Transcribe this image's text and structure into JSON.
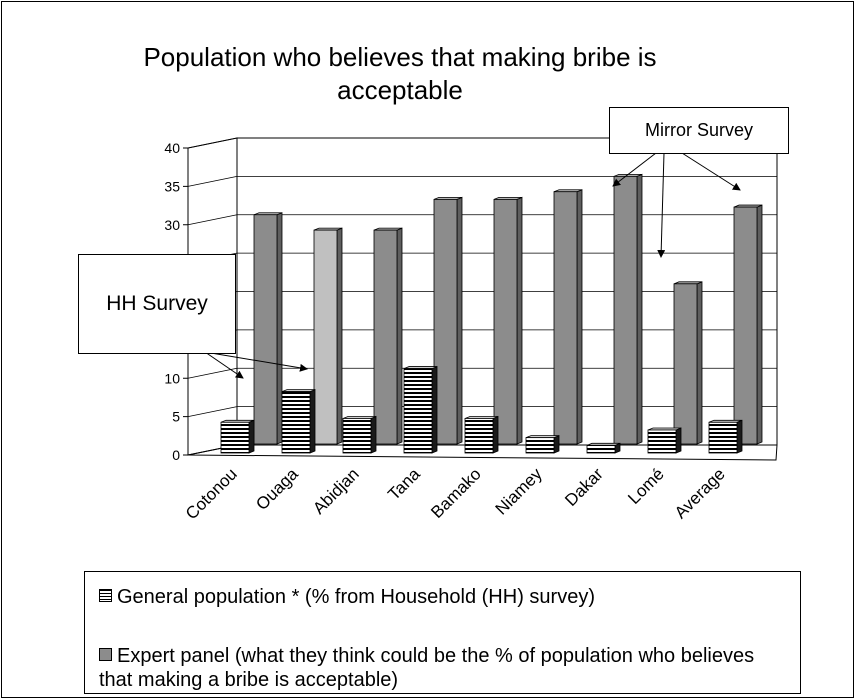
{
  "chart_data": {
    "type": "bar",
    "title_line1": "Population who believes that making bribe is",
    "title_line2": "acceptable",
    "categories": [
      "Cotonou",
      "Ouaga",
      "Abidjan",
      "Tana",
      "Bamako",
      "Niamey",
      "Dakar",
      "Lomé",
      "Average"
    ],
    "y_ticks": [
      "0",
      "5",
      "10",
      "",
      "",
      "25",
      "30",
      "35",
      "40"
    ],
    "ylim": [
      0,
      40
    ],
    "series": [
      {
        "name": "General population * (%  from Household (HH) survey)",
        "values": [
          4,
          8,
          4.5,
          11,
          4.5,
          2,
          1,
          3,
          4
        ]
      },
      {
        "name": "Expert panel (what they think could be the % of population who believes that making a bribe is acceptable)",
        "values": [
          30,
          28,
          28,
          32,
          32,
          33,
          35,
          21,
          31
        ]
      }
    ],
    "grid": true,
    "legend_position": "bottom",
    "annotations": {
      "hh": "HH Survey",
      "mirror": "Mirror Survey"
    },
    "colors": {
      "expert_front": "#8c8c8c",
      "expert_side": "#5e5e5e",
      "expert_top": "#b4b4b4",
      "expert_highlight": "#c0c0c0",
      "general_stripe": "#000000"
    }
  }
}
